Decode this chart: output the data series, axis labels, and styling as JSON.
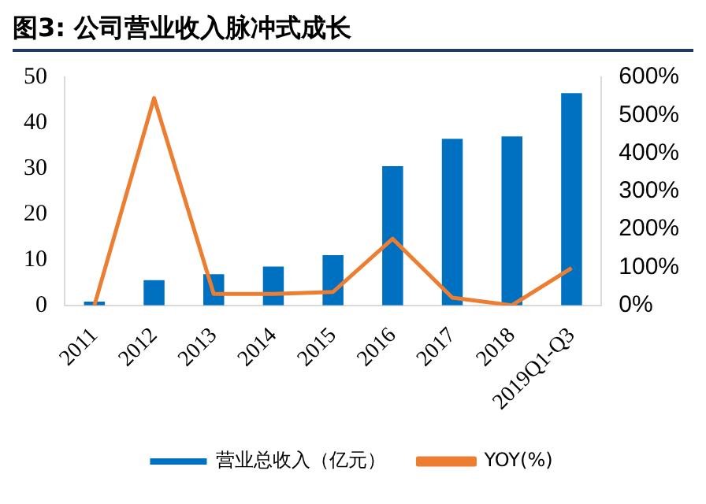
{
  "chart_data": {
    "type": "bar",
    "title": "图3:    公司营业收入脉冲式成长",
    "categories": [
      "2011",
      "2012",
      "2013",
      "2014",
      "2015",
      "2016",
      "2017",
      "2018",
      "2019Q1-Q3"
    ],
    "series": [
      {
        "name": "营业总收入（亿元）",
        "color": "#0070c0",
        "values": [
          0.8,
          5.5,
          6.8,
          8.5,
          11,
          30.5,
          36.5,
          37,
          46.5
        ]
      },
      {
        "name": "YOY(%)",
        "type": "line",
        "axis": "y2",
        "color": "#ed7d31",
        "values": [
          0,
          545,
          30,
          30,
          35,
          175,
          20,
          0,
          98
        ]
      }
    ],
    "ylim": [
      0,
      50
    ],
    "yticks": [
      0,
      10,
      20,
      30,
      40,
      50
    ],
    "y2lim": [
      0,
      600
    ],
    "y2ticks": [
      {
        "value": 0,
        "label": "0%"
      },
      {
        "value": 100,
        "label": "100%"
      },
      {
        "value": 200,
        "label": "200%"
      },
      {
        "value": 300,
        "label": "300%"
      },
      {
        "value": 400,
        "label": "400%"
      },
      {
        "value": 500,
        "label": "500%"
      },
      {
        "value": 600,
        "label": "600%"
      }
    ],
    "grid": false,
    "legend": "bottom",
    "marker": "none"
  }
}
